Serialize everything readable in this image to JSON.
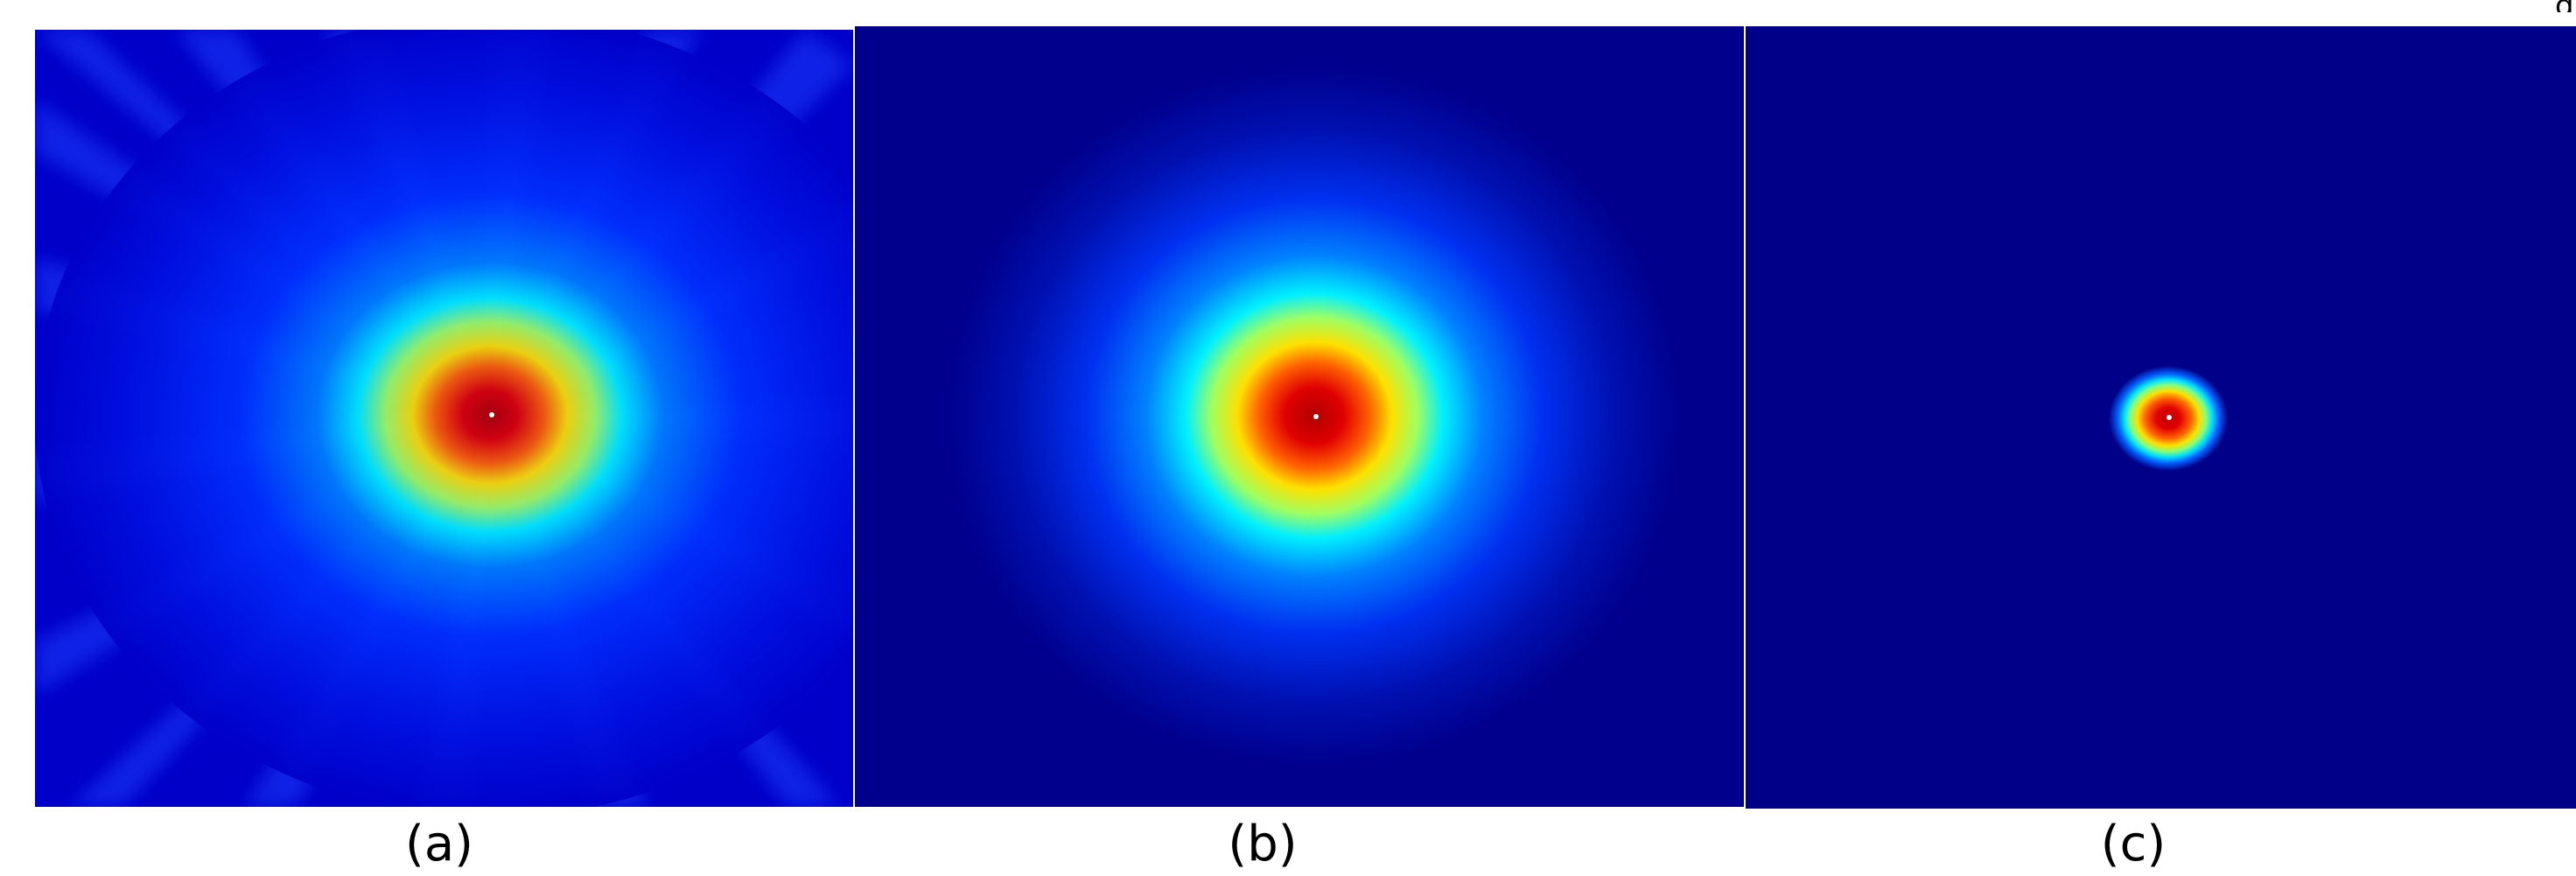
{
  "figure": {
    "panels": [
      {
        "caption": "(a)",
        "description_colors": {
          "background": "#0000c8",
          "core": "#c80000",
          "ring": "#ffd000"
        }
      },
      {
        "caption": "(b)",
        "description_colors": {
          "background": "#00008c",
          "core": "#c80000",
          "ring": "#ffd000"
        }
      },
      {
        "caption": "(c)",
        "description_colors": {
          "background": "#000088",
          "core": "#c80000",
          "ring": "#ffd000"
        }
      }
    ]
  },
  "colormap": "jet"
}
